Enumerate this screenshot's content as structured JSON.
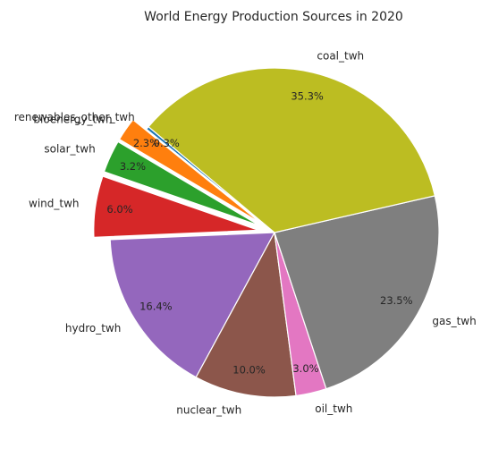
{
  "chart_data": {
    "type": "pie",
    "title": "World Energy Production Sources in 2020",
    "start_angle_deg": 140,
    "direction": "counterclockwise",
    "slices": [
      {
        "label": "renewables_other_twh",
        "value": 0.3,
        "pct_label": "0.3%",
        "color": "#1f77b4",
        "exploded": false
      },
      {
        "label": "bioenergy_twh",
        "value": 2.3,
        "pct_label": "2.3%",
        "color": "#ff7f0e",
        "exploded": true
      },
      {
        "label": "solar_twh",
        "value": 3.2,
        "pct_label": "3.2%",
        "color": "#2ca02c",
        "exploded": true
      },
      {
        "label": "wind_twh",
        "value": 6.0,
        "pct_label": "6.0%",
        "color": "#d62728",
        "exploded": true
      },
      {
        "label": "hydro_twh",
        "value": 16.4,
        "pct_label": "16.4%",
        "color": "#9467bd",
        "exploded": false
      },
      {
        "label": "nuclear_twh",
        "value": 10.0,
        "pct_label": "10.0%",
        "color": "#8c564b",
        "exploded": false
      },
      {
        "label": "oil_twh",
        "value": 3.0,
        "pct_label": "3.0%",
        "color": "#e377c2",
        "exploded": false
      },
      {
        "label": "gas_twh",
        "value": 23.5,
        "pct_label": "23.5%",
        "color": "#7f7f7f",
        "exploded": false
      },
      {
        "label": "coal_twh",
        "value": 35.3,
        "pct_label": "35.3%",
        "color": "#bcbd22",
        "exploded": false
      }
    ]
  }
}
